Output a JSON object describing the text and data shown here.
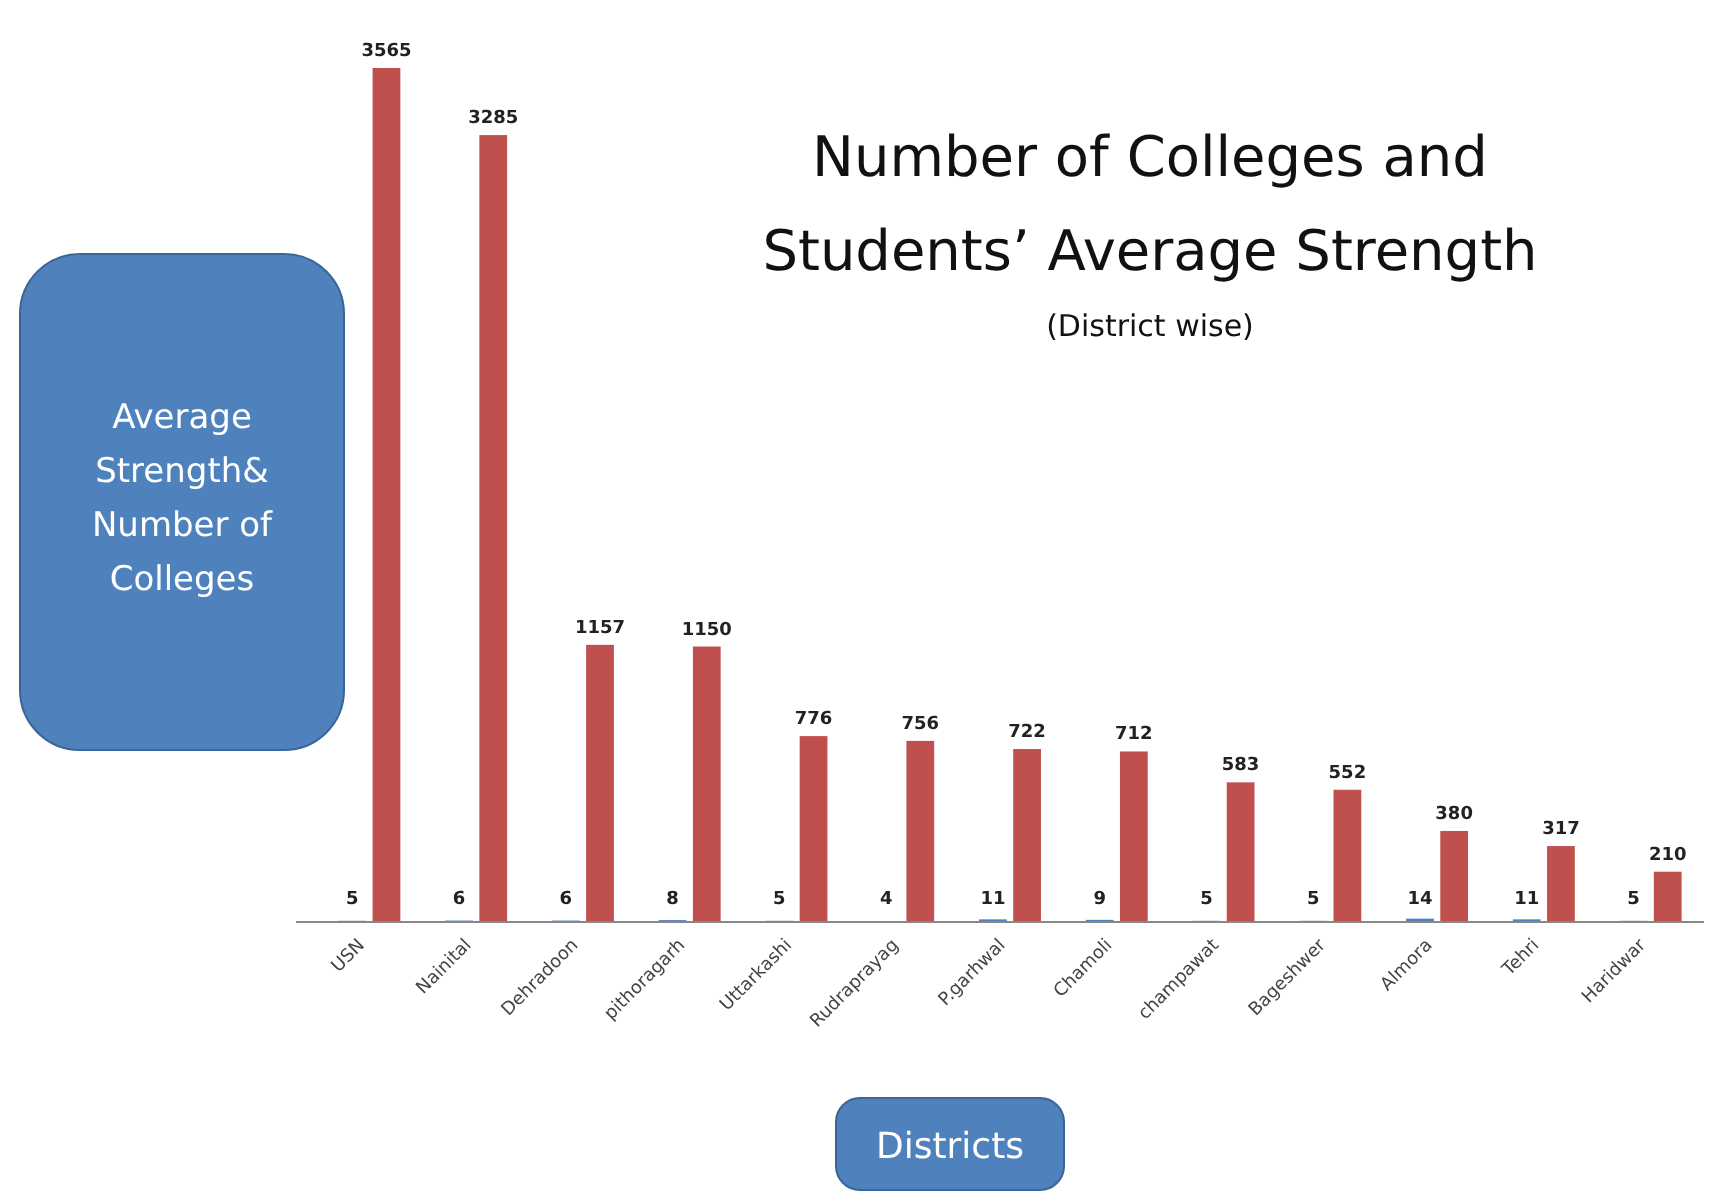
{
  "chart_data": {
    "type": "bar",
    "title": "Number of  Colleges and Students’ Average Strength",
    "subtitle": "(District wise)",
    "ylabel": "Average Strength& Number of Colleges",
    "xlabel": "Districts",
    "categories": [
      "USN",
      "Nainital",
      "Dehradoon",
      "pithoragarh",
      "Uttarkashi",
      "Rudraprayag",
      "P.garhwal",
      "Chamoli",
      "champawat",
      "Bageshwer",
      "Almora",
      "Tehri",
      "Haridwar"
    ],
    "series": [
      {
        "color": "#4f81bd",
        "values": [
          5,
          6,
          6,
          8,
          5,
          4,
          11,
          9,
          5,
          5,
          14,
          11,
          5
        ]
      },
      {
        "color": "#c0504d",
        "values": [
          3565,
          3285,
          1157,
          1150,
          776,
          756,
          722,
          712,
          583,
          552,
          380,
          317,
          210
        ]
      }
    ],
    "data_labels": true
  }
}
